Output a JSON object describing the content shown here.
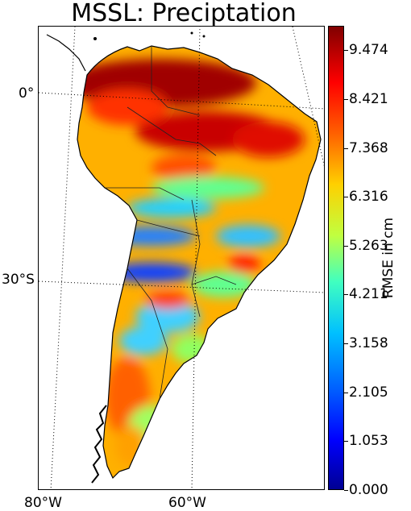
{
  "title": "MSSL: Preciptation",
  "map": {
    "lat_labels": [
      "0°",
      "30°S"
    ],
    "lon_labels": [
      "80°W",
      "60°W"
    ],
    "region": "South America",
    "graticule": "dotted",
    "coastline_color": "#000000"
  },
  "colorbar": {
    "label": "RMSE in cm",
    "ticks": [
      "0.000",
      "1.053",
      "2.105",
      "3.158",
      "4.211",
      "5.263",
      "6.316",
      "7.368",
      "8.421",
      "9.474"
    ],
    "min": 0.0,
    "max": 10.0,
    "colormap": "jet",
    "colors": [
      "#00008f",
      "#0000ff",
      "#0080ff",
      "#00ffff",
      "#80ff80",
      "#ffff00",
      "#ff8000",
      "#ff0000",
      "#800000"
    ]
  }
}
